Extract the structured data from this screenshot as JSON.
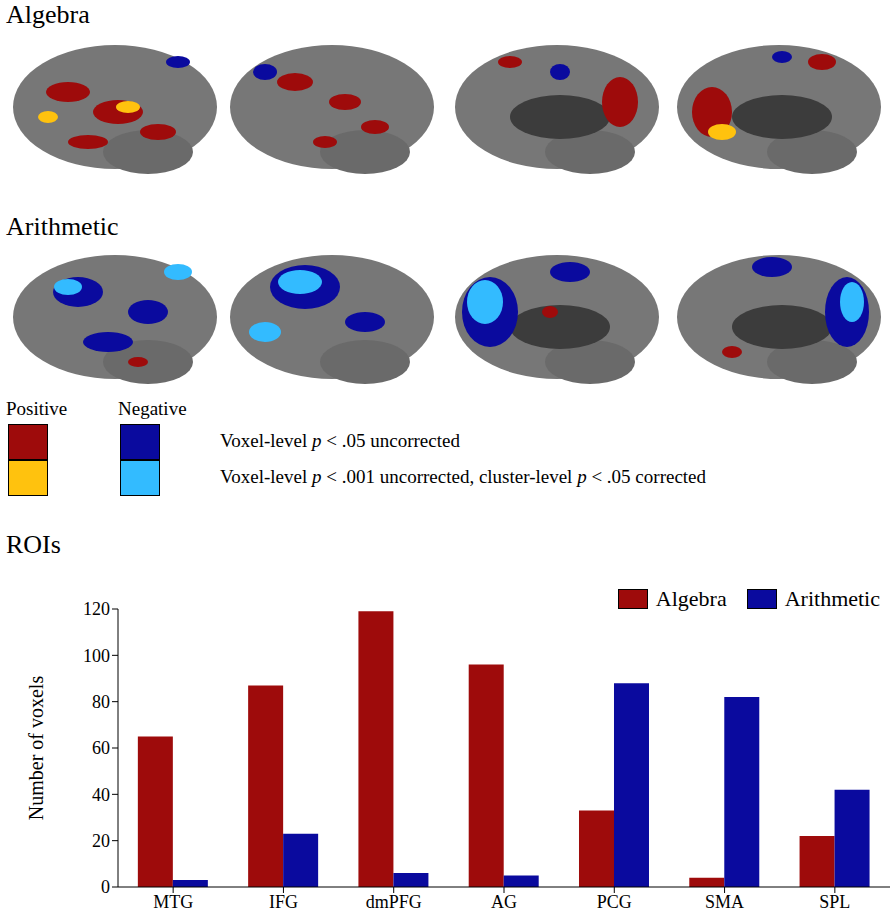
{
  "figure": {
    "map_panels": [
      "Algebra",
      "Arithmetic"
    ],
    "significance_key": {
      "columns": [
        "Positive",
        "Negative"
      ],
      "rows": [
        {
          "label": "Voxel-level p < .05 uncorrected",
          "colors": [
            "#9e0b0b",
            "#0a0a9e"
          ]
        },
        {
          "label": "Voxel-level p < .001 uncorrected, cluster-level p < .05 corrected",
          "colors": [
            "#ffc20e",
            "#33bbff"
          ]
        }
      ]
    }
  },
  "chart_data": {
    "type": "bar",
    "title": "ROIs",
    "categories": [
      "MTG",
      "IFG",
      "dmPFG",
      "AG",
      "PCG",
      "SMA",
      "SPL"
    ],
    "series": [
      {
        "name": "Algebra",
        "color": "#9e0b0b",
        "values": [
          65,
          87,
          119,
          96,
          33,
          4,
          22
        ]
      },
      {
        "name": "Arithmetic",
        "color": "#0a0a9e",
        "values": [
          3,
          23,
          6,
          5,
          88,
          82,
          42
        ]
      }
    ],
    "y_label": "Number of voxels",
    "ylim": [
      0,
      120
    ],
    "yticks": [
      0,
      20,
      40,
      60,
      80,
      100,
      120
    ],
    "grid": false,
    "legend": "top-right"
  }
}
